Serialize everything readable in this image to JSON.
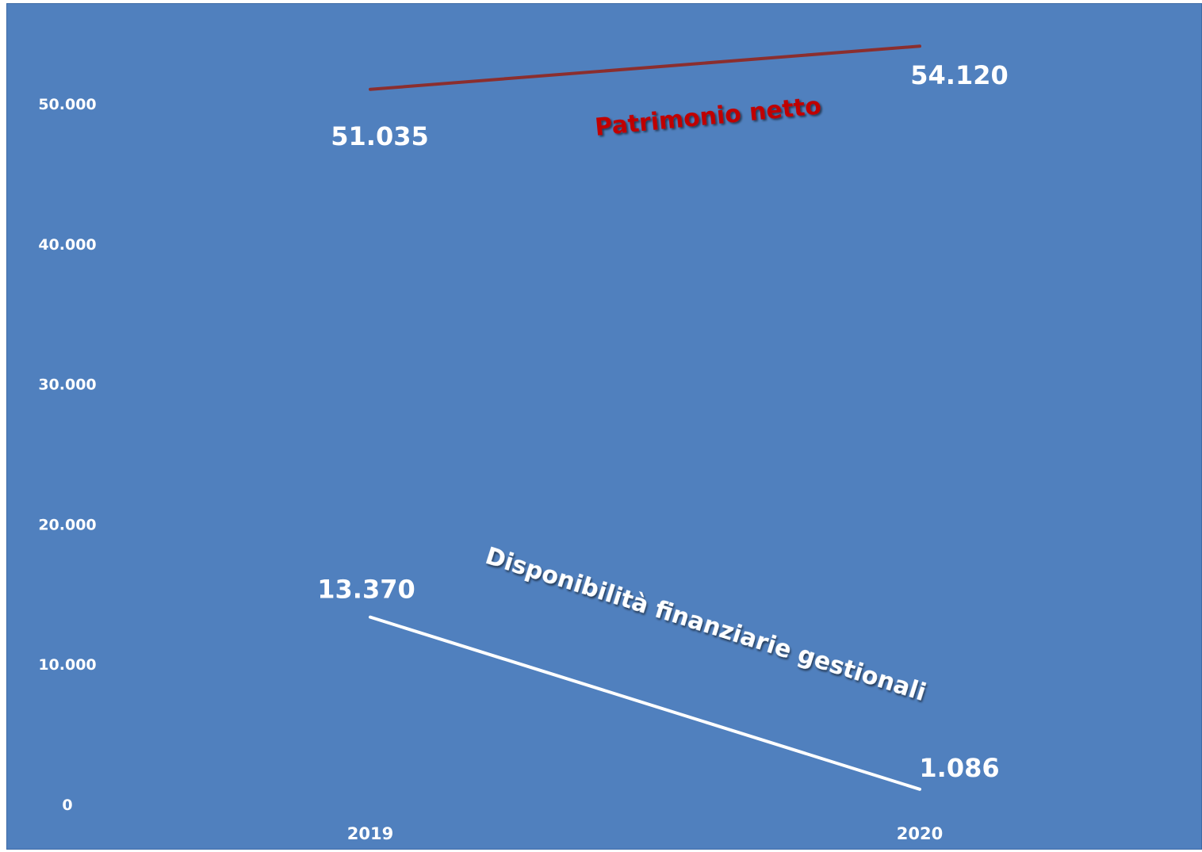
{
  "chart_data": {
    "type": "line",
    "categories": [
      "2019",
      "2020"
    ],
    "series": [
      {
        "name": "Patrimonio netto",
        "values": [
          51035,
          54120
        ],
        "value_labels": [
          "51.035",
          "54.120"
        ],
        "color": "#8b2e2e"
      },
      {
        "name": "Disponibilità finanziarie gestionali",
        "values": [
          13370,
          1086
        ],
        "value_labels": [
          "13.370",
          "1.086"
        ],
        "color": "#ffffff"
      }
    ],
    "yticks": [
      0,
      10000,
      20000,
      30000,
      40000,
      50000
    ],
    "ytick_labels": [
      "0",
      "10.000",
      "20.000",
      "30.000",
      "40.000",
      "50.000"
    ],
    "ylim": [
      0,
      56000
    ],
    "grid": false,
    "legend": "none",
    "colors": {
      "background": "#5080be",
      "annotation_netto": "#c00000",
      "text": "#ffffff"
    }
  }
}
